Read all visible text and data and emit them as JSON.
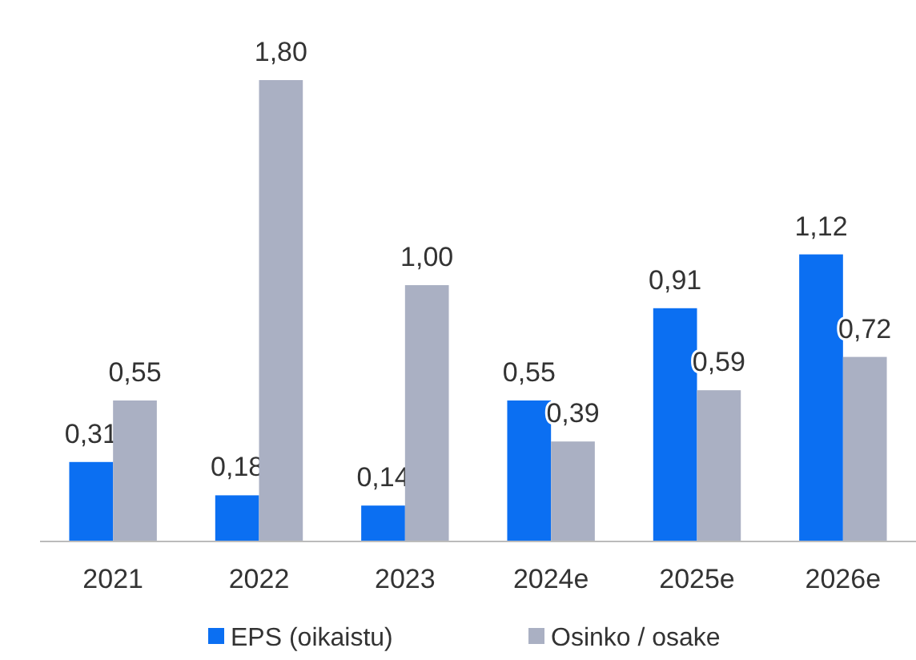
{
  "chart_data": {
    "type": "bar",
    "categories": [
      "2021",
      "2022",
      "2023",
      "2024e",
      "2025e",
      "2026e"
    ],
    "series": [
      {
        "name": "EPS (oikaistu)",
        "color": "#0b6ff2",
        "values": [
          0.31,
          0.18,
          0.14,
          0.55,
          0.91,
          1.12
        ],
        "value_labels": [
          "0,31",
          "0,18",
          "0,14",
          "0,55",
          "0,91",
          "1,12"
        ]
      },
      {
        "name": "Osinko / osake",
        "color": "#aab0c3",
        "values": [
          0.55,
          1.8,
          1.0,
          0.39,
          0.59,
          0.72
        ],
        "value_labels": [
          "0,55",
          "1,80",
          "1,00",
          "0,39",
          "0,59",
          "0,72"
        ]
      }
    ],
    "legend": "bottom"
  }
}
